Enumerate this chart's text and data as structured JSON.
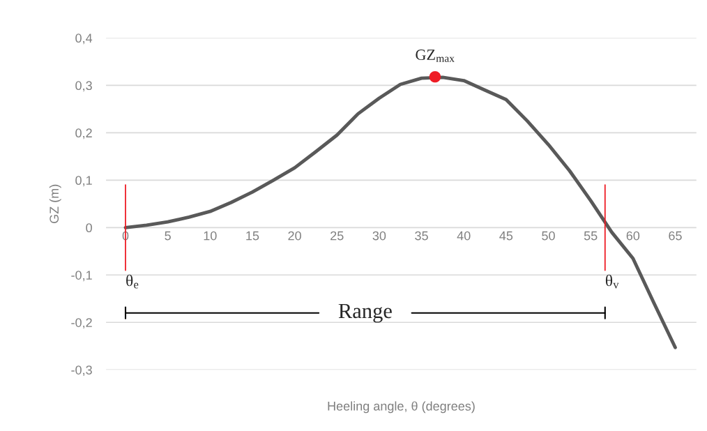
{
  "chart_data": {
    "type": "line",
    "xlabel": "Heeling angle, θ (degrees)",
    "ylabel": "GZ (m)",
    "xlim": [
      -2.3,
      67.5
    ],
    "ylim": [
      -0.3,
      0.4
    ],
    "xticks": [
      0,
      5,
      10,
      15,
      20,
      25,
      30,
      35,
      40,
      45,
      50,
      55,
      60,
      65
    ],
    "yticks": [
      {
        "value": -0.3,
        "label": "-0,3"
      },
      {
        "value": -0.2,
        "label": "-0,2"
      },
      {
        "value": -0.1,
        "label": "-0,1"
      },
      {
        "value": 0,
        "label": "0"
      },
      {
        "value": 0.1,
        "label": "0,1"
      },
      {
        "value": 0.2,
        "label": "0,2"
      },
      {
        "value": 0.3,
        "label": "0,3"
      },
      {
        "value": 0.4,
        "label": "0,4"
      }
    ],
    "grid": "y",
    "marker": "none",
    "line_style": "solid",
    "series": [
      {
        "type": "line",
        "color": "#595959",
        "x": [
          0,
          2.5,
          5,
          7.5,
          10,
          12.5,
          15,
          17.5,
          20,
          22.5,
          25,
          27.5,
          30,
          32.5,
          35,
          37.5,
          40,
          42.5,
          45,
          47.5,
          50,
          52.5,
          55,
          57.5,
          60,
          62.5,
          65
        ],
        "values": [
          0,
          0.005,
          0.012,
          0.022,
          0.034,
          0.053,
          0.075,
          0.1,
          0.126,
          0.16,
          0.195,
          0.24,
          0.273,
          0.302,
          0.315,
          0.317,
          0.31,
          0.29,
          0.27,
          0.225,
          0.175,
          0.12,
          0.057,
          -0.01,
          -0.065,
          -0.16,
          -0.253
        ]
      },
      {
        "type": "scatter",
        "color": "#ee1c25",
        "x": [
          36.6
        ],
        "values": [
          0.318
        ],
        "marker": "circle"
      }
    ],
    "ref_lines": [
      {
        "axis": "x",
        "value": 0,
        "label": "θ$_{e}$",
        "color": "#ee1c25"
      },
      {
        "axis": "x",
        "value": 56.7,
        "label": "θ$_{v}$",
        "color": "#ee1c25"
      }
    ],
    "annotations": [
      {
        "text": "GZ$_{max}$",
        "x": 36.6,
        "y": 0.318
      },
      "Range"
    ]
  }
}
